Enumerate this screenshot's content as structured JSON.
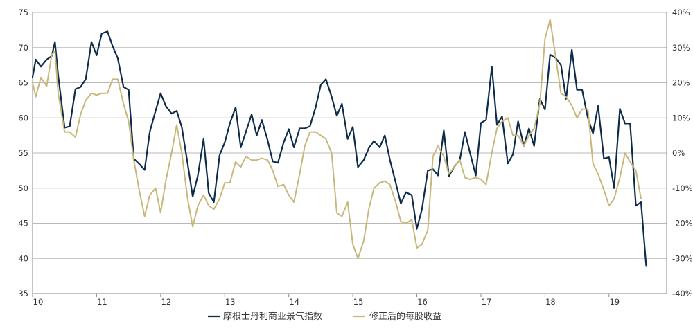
{
  "chart_data": {
    "type": "line",
    "title": "",
    "xlabel": "",
    "ylabel": "",
    "x_ticks": [
      "10",
      "11",
      "12",
      "13",
      "14",
      "15",
      "16",
      "17",
      "18",
      "19"
    ],
    "x_range": [
      10,
      19.9
    ],
    "y_left": {
      "range": [
        35,
        75
      ],
      "ticks": [
        "35",
        "40",
        "45",
        "50",
        "55",
        "60",
        "65",
        "70",
        "75"
      ]
    },
    "y_right": {
      "range": [
        -40,
        40
      ],
      "ticks": [
        "-40%",
        "-30%",
        "-20%",
        "-10%",
        "0%",
        "10%",
        "20%",
        "30%",
        "40%"
      ]
    },
    "grid": "horizontal",
    "legend_position": "bottom",
    "series": [
      {
        "name": "摩根士丹利商业景气指数",
        "axis": "left",
        "color": "#0d2b4a",
        "points": [
          [
            10.0,
            65.8
          ],
          [
            10.05,
            68.3
          ],
          [
            10.13,
            67.3
          ],
          [
            10.22,
            68.3
          ],
          [
            10.3,
            68.8
          ],
          [
            10.35,
            70.8
          ],
          [
            10.4,
            66.0
          ],
          [
            10.5,
            58.6
          ],
          [
            10.58,
            58.8
          ],
          [
            10.67,
            64.1
          ],
          [
            10.75,
            64.4
          ],
          [
            10.83,
            65.5
          ],
          [
            10.92,
            70.8
          ],
          [
            11.0,
            68.9
          ],
          [
            11.08,
            72.0
          ],
          [
            11.17,
            72.3
          ],
          [
            11.25,
            70.2
          ],
          [
            11.33,
            68.5
          ],
          [
            11.42,
            64.4
          ],
          [
            11.5,
            64.0
          ],
          [
            11.58,
            54.2
          ],
          [
            11.67,
            53.4
          ],
          [
            11.75,
            52.6
          ],
          [
            11.83,
            58.0
          ],
          [
            11.92,
            61.0
          ],
          [
            12.0,
            63.5
          ],
          [
            12.08,
            61.7
          ],
          [
            12.17,
            60.6
          ],
          [
            12.25,
            61.0
          ],
          [
            12.33,
            58.7
          ],
          [
            12.42,
            53.5
          ],
          [
            12.5,
            48.8
          ],
          [
            12.58,
            51.8
          ],
          [
            12.67,
            57.0
          ],
          [
            12.75,
            49.3
          ],
          [
            12.83,
            48.0
          ],
          [
            12.92,
            54.7
          ],
          [
            13.0,
            56.5
          ],
          [
            13.08,
            59.2
          ],
          [
            13.17,
            61.5
          ],
          [
            13.25,
            55.8
          ],
          [
            13.33,
            58.0
          ],
          [
            13.42,
            60.5
          ],
          [
            13.5,
            57.5
          ],
          [
            13.58,
            59.7
          ],
          [
            13.67,
            56.8
          ],
          [
            13.75,
            53.8
          ],
          [
            13.83,
            53.6
          ],
          [
            13.92,
            56.5
          ],
          [
            14.0,
            58.4
          ],
          [
            14.08,
            55.8
          ],
          [
            14.17,
            58.5
          ],
          [
            14.25,
            58.5
          ],
          [
            14.33,
            58.8
          ],
          [
            14.42,
            61.5
          ],
          [
            14.5,
            64.7
          ],
          [
            14.58,
            65.5
          ],
          [
            14.67,
            63.0
          ],
          [
            14.75,
            60.3
          ],
          [
            14.83,
            62.0
          ],
          [
            14.92,
            57.0
          ],
          [
            15.0,
            58.7
          ],
          [
            15.08,
            53.0
          ],
          [
            15.17,
            54.0
          ],
          [
            15.25,
            55.7
          ],
          [
            15.33,
            56.7
          ],
          [
            15.42,
            55.8
          ],
          [
            15.5,
            57.5
          ],
          [
            15.58,
            54.0
          ],
          [
            15.67,
            50.8
          ],
          [
            15.75,
            47.8
          ],
          [
            15.83,
            49.4
          ],
          [
            15.92,
            49.0
          ],
          [
            16.0,
            44.2
          ],
          [
            16.08,
            47.0
          ],
          [
            16.17,
            52.5
          ],
          [
            16.25,
            52.7
          ],
          [
            16.33,
            51.8
          ],
          [
            16.42,
            58.2
          ],
          [
            16.5,
            51.7
          ],
          [
            16.58,
            53.0
          ],
          [
            16.67,
            54.0
          ],
          [
            16.75,
            58.0
          ],
          [
            16.83,
            55.0
          ],
          [
            16.92,
            51.8
          ],
          [
            17.0,
            59.3
          ],
          [
            17.08,
            59.7
          ],
          [
            17.17,
            67.3
          ],
          [
            17.25,
            59.0
          ],
          [
            17.33,
            60.2
          ],
          [
            17.42,
            53.5
          ],
          [
            17.5,
            54.8
          ],
          [
            17.58,
            59.5
          ],
          [
            17.67,
            56.0
          ],
          [
            17.75,
            58.5
          ],
          [
            17.83,
            56.0
          ],
          [
            17.92,
            62.7
          ],
          [
            18.0,
            61.2
          ],
          [
            18.08,
            69.0
          ],
          [
            18.17,
            68.5
          ],
          [
            18.25,
            67.5
          ],
          [
            18.33,
            62.7
          ],
          [
            18.42,
            69.7
          ],
          [
            18.5,
            64.0
          ],
          [
            18.58,
            64.0
          ],
          [
            18.67,
            60.0
          ],
          [
            18.75,
            57.8
          ],
          [
            18.83,
            61.7
          ],
          [
            18.92,
            54.2
          ],
          [
            19.0,
            54.4
          ],
          [
            19.08,
            50.0
          ],
          [
            19.17,
            61.3
          ],
          [
            19.25,
            59.2
          ],
          [
            19.33,
            59.2
          ],
          [
            19.42,
            47.5
          ],
          [
            19.5,
            48.0
          ],
          [
            19.58,
            39.0
          ]
        ]
      },
      {
        "name": "修正后的每股收益",
        "axis": "right",
        "color": "#c8b77a",
        "points": [
          [
            10.0,
            20.0
          ],
          [
            10.05,
            16.0
          ],
          [
            10.13,
            21.5
          ],
          [
            10.22,
            19.0
          ],
          [
            10.3,
            28.0
          ],
          [
            10.35,
            29.0
          ],
          [
            10.4,
            17.0
          ],
          [
            10.5,
            6.0
          ],
          [
            10.58,
            6.0
          ],
          [
            10.67,
            4.5
          ],
          [
            10.75,
            11.0
          ],
          [
            10.83,
            15.0
          ],
          [
            10.92,
            17.0
          ],
          [
            11.0,
            16.5
          ],
          [
            11.08,
            17.0
          ],
          [
            11.17,
            17.0
          ],
          [
            11.25,
            21.0
          ],
          [
            11.33,
            21.0
          ],
          [
            11.42,
            14.0
          ],
          [
            11.5,
            9.0
          ],
          [
            11.58,
            -2.0
          ],
          [
            11.67,
            -11.0
          ],
          [
            11.75,
            -18.0
          ],
          [
            11.83,
            -12.0
          ],
          [
            11.92,
            -10.0
          ],
          [
            12.0,
            -17.0
          ],
          [
            12.08,
            -8.0
          ],
          [
            12.17,
            0.0
          ],
          [
            12.25,
            8.0
          ],
          [
            12.33,
            0.0
          ],
          [
            12.42,
            -13.0
          ],
          [
            12.5,
            -21.0
          ],
          [
            12.58,
            -15.0
          ],
          [
            12.67,
            -12.0
          ],
          [
            12.75,
            -15.0
          ],
          [
            12.83,
            -16.0
          ],
          [
            12.92,
            -13.0
          ],
          [
            13.0,
            -8.5
          ],
          [
            13.08,
            -8.5
          ],
          [
            13.17,
            -2.5
          ],
          [
            13.25,
            -4.0
          ],
          [
            13.33,
            -1.0
          ],
          [
            13.42,
            -2.0
          ],
          [
            13.5,
            -2.0
          ],
          [
            13.58,
            -1.5
          ],
          [
            13.67,
            -2.0
          ],
          [
            13.75,
            -5.0
          ],
          [
            13.83,
            -9.5
          ],
          [
            13.92,
            -9.0
          ],
          [
            14.0,
            -12.0
          ],
          [
            14.08,
            -14.0
          ],
          [
            14.17,
            -6.0
          ],
          [
            14.25,
            2.0
          ],
          [
            14.33,
            6.0
          ],
          [
            14.42,
            6.0
          ],
          [
            14.5,
            5.0
          ],
          [
            14.58,
            4.0
          ],
          [
            14.67,
            0.0
          ],
          [
            14.75,
            -17.0
          ],
          [
            14.83,
            -18.0
          ],
          [
            14.92,
            -14.0
          ],
          [
            15.0,
            -26.0
          ],
          [
            15.08,
            -30.0
          ],
          [
            15.17,
            -25.0
          ],
          [
            15.25,
            -16.0
          ],
          [
            15.33,
            -10.0
          ],
          [
            15.42,
            -8.5
          ],
          [
            15.5,
            -8.0
          ],
          [
            15.58,
            -9.0
          ],
          [
            15.67,
            -14.0
          ],
          [
            15.75,
            -19.5
          ],
          [
            15.83,
            -20.0
          ],
          [
            15.92,
            -19.0
          ],
          [
            16.0,
            -27.0
          ],
          [
            16.08,
            -26.0
          ],
          [
            16.17,
            -22.0
          ],
          [
            16.25,
            -1.0
          ],
          [
            16.33,
            2.0
          ],
          [
            16.42,
            -1.0
          ],
          [
            16.5,
            -6.0
          ],
          [
            16.58,
            -4.0
          ],
          [
            16.67,
            -2.0
          ],
          [
            16.75,
            -7.0
          ],
          [
            16.83,
            -7.5
          ],
          [
            16.92,
            -7.0
          ],
          [
            17.0,
            -7.5
          ],
          [
            17.08,
            -9.0
          ],
          [
            17.17,
            0.0
          ],
          [
            17.25,
            7.0
          ],
          [
            17.33,
            9.0
          ],
          [
            17.42,
            10.0
          ],
          [
            17.5,
            5.0
          ],
          [
            17.58,
            5.0
          ],
          [
            17.67,
            2.0
          ],
          [
            17.75,
            5.0
          ],
          [
            17.83,
            7.0
          ],
          [
            17.92,
            14.0
          ],
          [
            18.0,
            32.5
          ],
          [
            18.08,
            38.0
          ],
          [
            18.17,
            27.0
          ],
          [
            18.25,
            17.0
          ],
          [
            18.33,
            16.0
          ],
          [
            18.42,
            13.5
          ],
          [
            18.5,
            10.0
          ],
          [
            18.58,
            12.5
          ],
          [
            18.67,
            12.5
          ],
          [
            18.75,
            -3.0
          ],
          [
            18.83,
            -6.0
          ],
          [
            18.92,
            -10.5
          ],
          [
            19.0,
            -15.0
          ],
          [
            19.08,
            -13.0
          ],
          [
            19.17,
            -7.0
          ],
          [
            19.25,
            0.0
          ],
          [
            19.33,
            -2.5
          ],
          [
            19.42,
            -5.0
          ],
          [
            19.5,
            -13.0
          ]
        ]
      }
    ]
  }
}
